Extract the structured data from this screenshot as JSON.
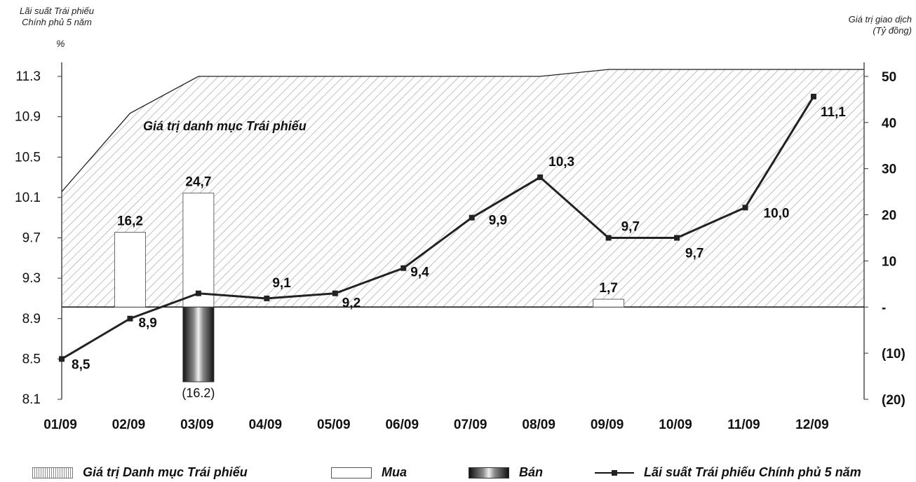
{
  "chart_data": {
    "type": "line",
    "left_axis_title": [
      "Lãi suất Trái phiếu",
      "Chính phủ 5 năm"
    ],
    "left_axis_unit": "%",
    "right_axis_title": [
      "Giá trị giao dịch",
      "(Tỷ đồng)"
    ],
    "categories": [
      "01/09",
      "02/09",
      "03/09",
      "04/09",
      "05/09",
      "06/09",
      "07/09",
      "08/09",
      "09/09",
      "10/09",
      "11/09",
      "12/09"
    ],
    "left_ticks": [
      "11.3",
      "10.9",
      "10.5",
      "10.1",
      "9.7",
      "9.3",
      "8.9",
      "8.5",
      "8.1"
    ],
    "right_ticks": [
      "50",
      "40",
      "30",
      "20",
      "10",
      "-",
      "(10)",
      "(20)"
    ],
    "ylim_left": [
      8.1,
      11.3
    ],
    "ylim_right": [
      -20,
      50
    ],
    "area_annotation": "Giá trị danh mục Trái phiếu",
    "series": [
      {
        "name": "Lãi suất Trái phiếu Chính phủ 5 năm",
        "kind": "line",
        "axis": "left",
        "values": [
          8.5,
          8.9,
          9.15,
          9.1,
          9.15,
          9.4,
          9.9,
          10.3,
          9.7,
          9.7,
          10.0,
          11.1
        ],
        "labels": [
          "8,5",
          "8,9",
          "",
          "9,1",
          "9,2",
          "9,4",
          "9,9",
          "10,3",
          "9,7",
          "9,7",
          "10,0",
          "11,1"
        ]
      },
      {
        "name": "Mua",
        "kind": "bar",
        "axis": "right",
        "values": [
          null,
          16.2,
          24.7,
          null,
          null,
          null,
          null,
          null,
          1.7,
          null,
          null,
          null
        ],
        "labels": [
          "",
          "16,2",
          "24,7",
          "",
          "",
          "",
          "",
          "",
          "1,7",
          "",
          "",
          ""
        ]
      },
      {
        "name": "Bán",
        "kind": "bar",
        "axis": "right",
        "values": [
          null,
          null,
          -16.2,
          null,
          null,
          null,
          null,
          null,
          null,
          null,
          null,
          null
        ],
        "labels": [
          "",
          "",
          "(16.2)",
          "",
          "",
          "",
          "",
          "",
          "",
          "",
          "",
          ""
        ]
      },
      {
        "name": "Giá trị Danh mục Trái phiếu",
        "kind": "area",
        "axis": "right",
        "values": [
          25,
          42,
          50,
          50,
          50,
          50,
          50,
          50,
          51.5,
          51.5,
          51.5,
          51.5
        ]
      }
    ],
    "legend_position": "bottom",
    "grid": false
  },
  "legend": {
    "portfolio": "Giá trị Danh mục Trái phiếu",
    "buy": "Mua",
    "sell": "Bán",
    "rate": "Lãi suất Trái phiếu Chính phủ 5 năm"
  },
  "colors": {
    "line": "#222222",
    "hatch": "#8a8a8a",
    "axis": "#333333"
  }
}
